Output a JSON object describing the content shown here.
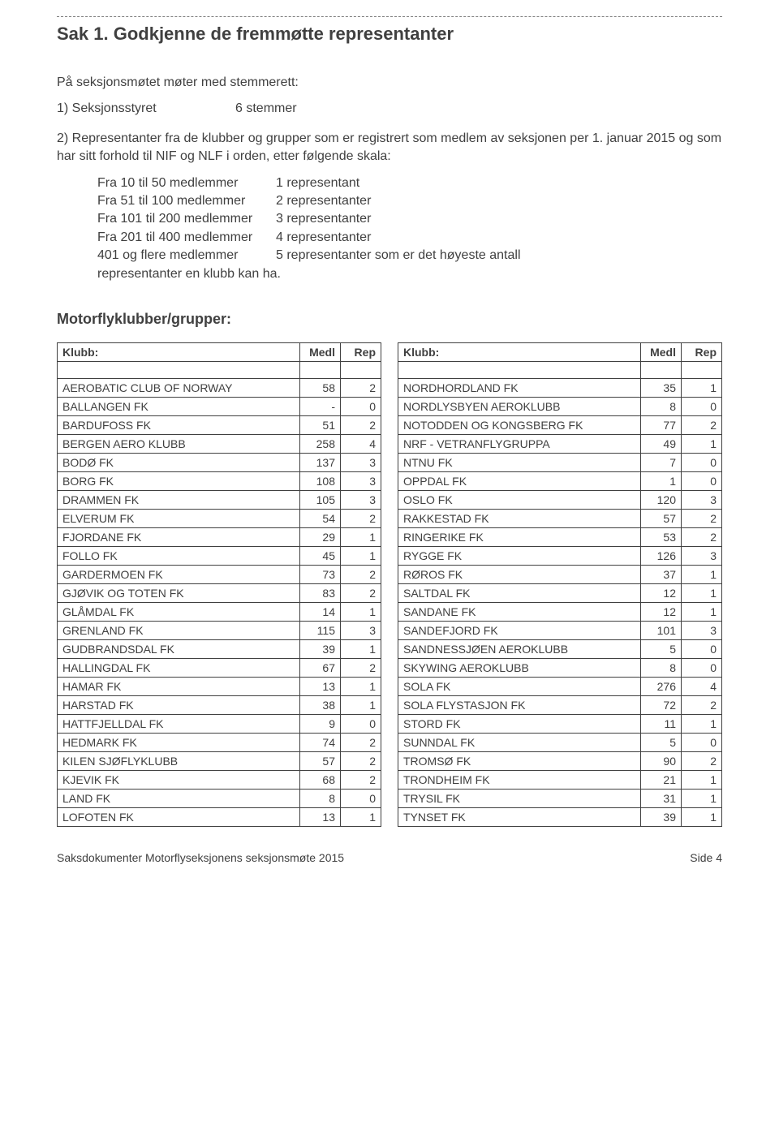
{
  "title": "Sak 1.  Godkjenne de fremmøtte representanter",
  "intro": "På seksjonsmøtet møter med stemmerett:",
  "item1_label": "1) Seksjonsstyret",
  "item1_val": "6 stemmer",
  "item2_text": "2) Representanter fra de klubber og grupper som er registrert som medlem av seksjonen per 1. januar 2015 og som har sitt forhold til NIF og NLF i orden, etter følgende skala:",
  "scale": [
    {
      "range": "Fra 10 til 50 medlemmer",
      "rep": "1 representant"
    },
    {
      "range": "Fra 51 til 100 medlemmer",
      "rep": "2 representanter"
    },
    {
      "range": "Fra 101 til 200 medlemmer",
      "rep": "3 representanter"
    },
    {
      "range": "Fra 201 til 400 medlemmer",
      "rep": "4 representanter"
    },
    {
      "range": "401 og flere medlemmer",
      "rep": "5 representanter som er det høyeste antall"
    }
  ],
  "scale_tail": "representanter en klubb kan ha.",
  "clubs_header": "Motorflyklubber/grupper:",
  "col_klubb": "Klubb:",
  "col_medl": "Medl",
  "col_rep": "Rep",
  "left": [
    {
      "n": "AEROBATIC CLUB OF NORWAY",
      "m": "58",
      "r": "2"
    },
    {
      "n": "BALLANGEN FK",
      "m": "-",
      "r": "0"
    },
    {
      "n": "BARDUFOSS FK",
      "m": "51",
      "r": "2"
    },
    {
      "n": "BERGEN AERO KLUBB",
      "m": "258",
      "r": "4"
    },
    {
      "n": "BODØ FK",
      "m": "137",
      "r": "3"
    },
    {
      "n": "BORG FK",
      "m": "108",
      "r": "3"
    },
    {
      "n": "DRAMMEN FK",
      "m": "105",
      "r": "3"
    },
    {
      "n": "ELVERUM FK",
      "m": "54",
      "r": "2"
    },
    {
      "n": "FJORDANE FK",
      "m": "29",
      "r": "1"
    },
    {
      "n": "FOLLO FK",
      "m": "45",
      "r": "1"
    },
    {
      "n": "GARDERMOEN FK",
      "m": "73",
      "r": "2"
    },
    {
      "n": "GJØVIK OG TOTEN FK",
      "m": "83",
      "r": "2"
    },
    {
      "n": "GLÅMDAL FK",
      "m": "14",
      "r": "1"
    },
    {
      "n": "GRENLAND FK",
      "m": "115",
      "r": "3"
    },
    {
      "n": "GUDBRANDSDAL FK",
      "m": "39",
      "r": "1"
    },
    {
      "n": "HALLINGDAL FK",
      "m": "67",
      "r": "2"
    },
    {
      "n": "HAMAR FK",
      "m": "13",
      "r": "1"
    },
    {
      "n": "HARSTAD FK",
      "m": "38",
      "r": "1"
    },
    {
      "n": "HATTFJELLDAL FK",
      "m": "9",
      "r": "0"
    },
    {
      "n": "HEDMARK FK",
      "m": "74",
      "r": "2"
    },
    {
      "n": "KILEN SJØFLYKLUBB",
      "m": "57",
      "r": "2"
    },
    {
      "n": "KJEVIK FK",
      "m": "68",
      "r": "2"
    },
    {
      "n": "LAND FK",
      "m": "8",
      "r": "0"
    },
    {
      "n": "LOFOTEN FK",
      "m": "13",
      "r": "1"
    }
  ],
  "right": [
    {
      "n": "NORDHORDLAND FK",
      "m": "35",
      "r": "1"
    },
    {
      "n": "NORDLYSBYEN AEROKLUBB",
      "m": "8",
      "r": "0"
    },
    {
      "n": "NOTODDEN OG KONGSBERG FK",
      "m": "77",
      "r": "2"
    },
    {
      "n": "NRF - VETRANFLYGRUPPA",
      "m": "49",
      "r": "1"
    },
    {
      "n": "NTNU FK",
      "m": "7",
      "r": "0"
    },
    {
      "n": "OPPDAL FK",
      "m": "1",
      "r": "0"
    },
    {
      "n": "OSLO FK",
      "m": "120",
      "r": "3"
    },
    {
      "n": "RAKKESTAD FK",
      "m": "57",
      "r": "2"
    },
    {
      "n": "RINGERIKE FK",
      "m": "53",
      "r": "2"
    },
    {
      "n": "RYGGE FK",
      "m": "126",
      "r": "3"
    },
    {
      "n": "RØROS FK",
      "m": "37",
      "r": "1"
    },
    {
      "n": "SALTDAL FK",
      "m": "12",
      "r": "1"
    },
    {
      "n": "SANDANE FK",
      "m": "12",
      "r": "1"
    },
    {
      "n": "SANDEFJORD FK",
      "m": "101",
      "r": "3"
    },
    {
      "n": "SANDNESSJØEN AEROKLUBB",
      "m": "5",
      "r": "0"
    },
    {
      "n": "SKYWING AEROKLUBB",
      "m": "8",
      "r": "0"
    },
    {
      "n": "SOLA FK",
      "m": "276",
      "r": "4"
    },
    {
      "n": "SOLA FLYSTASJON FK",
      "m": "72",
      "r": "2"
    },
    {
      "n": "STORD FK",
      "m": "11",
      "r": "1"
    },
    {
      "n": "SUNNDAL FK",
      "m": "5",
      "r": "0"
    },
    {
      "n": "TROMSØ FK",
      "m": "90",
      "r": "2"
    },
    {
      "n": "TRONDHEIM FK",
      "m": "21",
      "r": "1"
    },
    {
      "n": "TRYSIL FK",
      "m": "31",
      "r": "1"
    },
    {
      "n": "TYNSET FK",
      "m": "39",
      "r": "1"
    }
  ],
  "footer_left": "Saksdokumenter Motorflyseksjonens seksjonsmøte 2015",
  "footer_right": "Side 4"
}
